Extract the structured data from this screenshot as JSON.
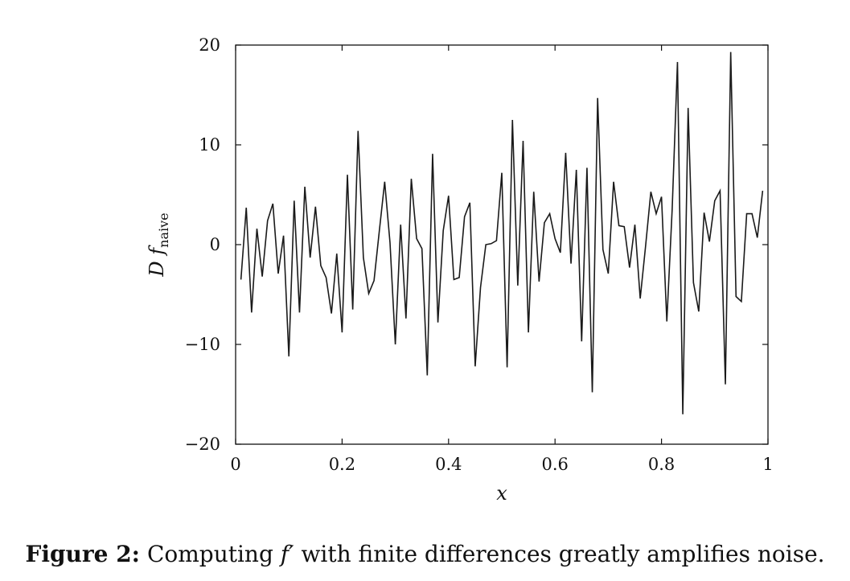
{
  "chart_data": {
    "type": "line",
    "xlabel": "x",
    "ylabel": {
      "main": "D f",
      "subscript": "naive"
    },
    "xlim": [
      0,
      1
    ],
    "ylim": [
      -20,
      20
    ],
    "x_ticks": [
      {
        "value": 0,
        "label": "0"
      },
      {
        "value": 0.2,
        "label": "0.2"
      },
      {
        "value": 0.4,
        "label": "0.4"
      },
      {
        "value": 0.6,
        "label": "0.6"
      },
      {
        "value": 0.8,
        "label": "0.8"
      },
      {
        "value": 1,
        "label": "1"
      }
    ],
    "y_ticks": [
      {
        "value": 20,
        "label": "20"
      },
      {
        "value": 10,
        "label": "10"
      },
      {
        "value": 0,
        "label": "0"
      },
      {
        "value": -10,
        "label": "−10"
      },
      {
        "value": -20,
        "label": "−20"
      }
    ],
    "grid": false,
    "legend": "none",
    "line_color": "#1a1a1a",
    "series": [
      {
        "x": [
          0.01,
          0.02,
          0.03,
          0.04,
          0.05,
          0.06,
          0.07,
          0.08,
          0.09,
          0.1,
          0.11,
          0.12,
          0.13,
          0.14,
          0.15,
          0.16,
          0.17,
          0.18,
          0.19,
          0.2,
          0.21,
          0.22,
          0.23,
          0.24,
          0.25,
          0.26,
          0.27,
          0.28,
          0.29,
          0.3,
          0.31,
          0.32,
          0.33,
          0.34,
          0.35,
          0.36,
          0.37,
          0.38,
          0.39,
          0.4,
          0.41,
          0.42,
          0.43,
          0.44,
          0.45,
          0.46,
          0.47,
          0.48,
          0.49,
          0.5,
          0.51,
          0.52,
          0.53,
          0.54,
          0.55,
          0.56,
          0.57,
          0.58,
          0.59,
          0.6,
          0.61,
          0.62,
          0.63,
          0.64,
          0.65,
          0.66,
          0.67,
          0.68,
          0.69,
          0.7,
          0.71,
          0.72,
          0.73,
          0.74,
          0.75,
          0.76,
          0.77,
          0.78,
          0.79,
          0.8,
          0.81,
          0.82,
          0.83,
          0.84,
          0.85,
          0.86,
          0.87,
          0.88,
          0.89,
          0.9,
          0.91,
          0.92,
          0.93,
          0.94,
          0.95,
          0.96,
          0.97,
          0.98,
          0.99
        ],
        "y": [
          -3.5,
          3.7,
          -6.8,
          1.6,
          -3.2,
          2.4,
          4.1,
          -2.9,
          0.9,
          -11.2,
          4.4,
          -6.8,
          5.8,
          -1.3,
          3.8,
          -2.1,
          -3.3,
          -6.9,
          -0.9,
          -8.8,
          7.0,
          -6.5,
          11.4,
          -1.3,
          -4.9,
          -3.6,
          1.4,
          6.3,
          0.2,
          -10.0,
          2.0,
          -7.4,
          6.6,
          0.6,
          -0.4,
          -13.1,
          9.1,
          -7.8,
          1.4,
          4.9,
          -3.5,
          -3.3,
          2.8,
          4.2,
          -12.2,
          -4.3,
          0.0,
          0.1,
          0.4,
          7.2,
          -12.3,
          12.5,
          -4.1,
          10.4,
          -8.8,
          5.3,
          -3.7,
          2.2,
          3.1,
          0.6,
          -0.8,
          9.2,
          -1.9,
          7.5,
          -9.7,
          7.7,
          -14.8,
          14.7,
          -0.5,
          -2.9,
          6.3,
          1.9,
          1.8,
          -2.3,
          2.0,
          -5.4,
          -0.2,
          5.3,
          3.1,
          4.8,
          -7.7,
          3.5,
          18.3,
          -17.0,
          13.7,
          -3.8,
          -6.7,
          3.2,
          0.3,
          4.4,
          5.4,
          -14.0,
          19.3,
          -5.2,
          -5.7,
          3.1,
          3.1,
          0.7,
          5.4
        ]
      }
    ]
  },
  "caption": {
    "prefix": "Figure 2:",
    "before": "Computing",
    "symbol": "f′",
    "after": "with finite differences greatly amplifies noise."
  }
}
